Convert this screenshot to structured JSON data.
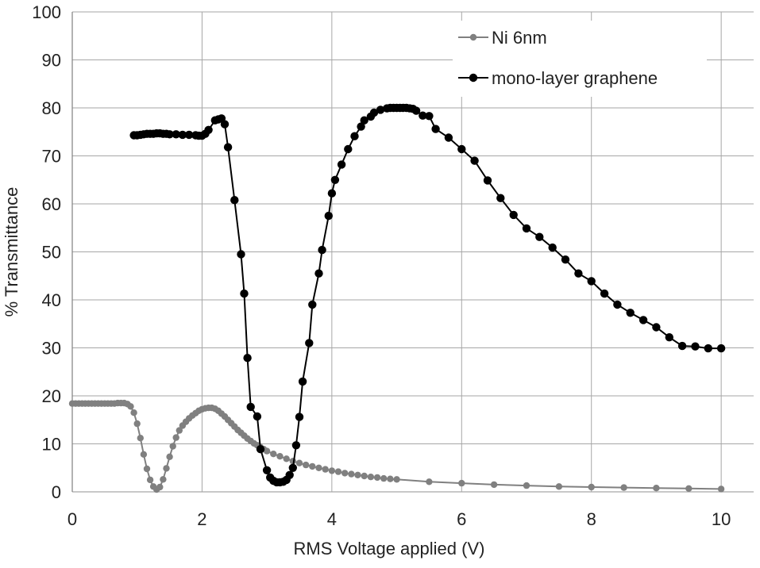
{
  "chart_data": {
    "type": "line",
    "title": "",
    "xlabel": "RMS Voltage applied (V)",
    "ylabel": "% Transmittance",
    "xlim": [
      0,
      10.5
    ],
    "ylim": [
      0,
      100
    ],
    "x_ticks": [
      0,
      2,
      4,
      6,
      8,
      10
    ],
    "y_ticks": [
      0,
      10,
      20,
      30,
      40,
      50,
      60,
      70,
      80,
      90,
      100
    ],
    "grid": true,
    "legend_position": "top-right",
    "series": [
      {
        "name": "Ni 6nm",
        "color": "#808080",
        "x": [
          0,
          0.05,
          0.1,
          0.15,
          0.2,
          0.25,
          0.3,
          0.35,
          0.4,
          0.45,
          0.5,
          0.55,
          0.6,
          0.65,
          0.7,
          0.75,
          0.8,
          0.85,
          0.9,
          0.95,
          1.0,
          1.05,
          1.1,
          1.15,
          1.2,
          1.25,
          1.3,
          1.35,
          1.4,
          1.45,
          1.5,
          1.55,
          1.6,
          1.65,
          1.7,
          1.75,
          1.8,
          1.85,
          1.9,
          1.95,
          2.0,
          2.05,
          2.1,
          2.15,
          2.2,
          2.25,
          2.3,
          2.35,
          2.4,
          2.45,
          2.5,
          2.55,
          2.6,
          2.65,
          2.7,
          2.75,
          2.8,
          2.85,
          2.9,
          2.95,
          3.0,
          3.1,
          3.2,
          3.3,
          3.4,
          3.5,
          3.6,
          3.7,
          3.8,
          3.9,
          4.0,
          4.1,
          4.2,
          4.3,
          4.4,
          4.5,
          4.6,
          4.7,
          4.8,
          4.9,
          5.0,
          5.5,
          6.0,
          6.5,
          7.0,
          7.5,
          8.0,
          8.5,
          9.0,
          9.5,
          10.0
        ],
        "y": [
          18.4,
          18.4,
          18.4,
          18.4,
          18.4,
          18.4,
          18.4,
          18.4,
          18.4,
          18.4,
          18.4,
          18.4,
          18.4,
          18.4,
          18.5,
          18.5,
          18.5,
          18.3,
          17.8,
          16.5,
          14.2,
          11.2,
          7.8,
          4.8,
          2.5,
          1.1,
          0.5,
          1.0,
          2.6,
          4.9,
          7.3,
          9.5,
          11.3,
          12.8,
          13.8,
          14.6,
          15.3,
          15.9,
          16.4,
          16.9,
          17.2,
          17.4,
          17.5,
          17.5,
          17.3,
          16.9,
          16.3,
          15.7,
          15.0,
          14.3,
          13.6,
          12.9,
          12.3,
          11.7,
          11.1,
          10.6,
          10.1,
          9.7,
          9.3,
          8.9,
          8.5,
          7.9,
          7.4,
          6.9,
          6.4,
          6.0,
          5.6,
          5.3,
          5.0,
          4.7,
          4.4,
          4.2,
          3.9,
          3.7,
          3.5,
          3.3,
          3.1,
          3.0,
          2.8,
          2.7,
          2.6,
          2.1,
          1.8,
          1.5,
          1.3,
          1.1,
          1.0,
          0.9,
          0.8,
          0.7,
          0.6
        ]
      },
      {
        "name": "mono-layer graphene",
        "color": "#000000",
        "x": [
          0.95,
          1.0,
          1.05,
          1.1,
          1.15,
          1.2,
          1.25,
          1.3,
          1.35,
          1.4,
          1.45,
          1.5,
          1.6,
          1.7,
          1.8,
          1.9,
          1.95,
          2.0,
          2.05,
          2.1,
          2.2,
          2.25,
          2.3,
          2.35,
          2.4,
          2.5,
          2.6,
          2.65,
          2.7,
          2.75,
          2.85,
          2.9,
          3.0,
          3.05,
          3.1,
          3.15,
          3.2,
          3.25,
          3.3,
          3.35,
          3.4,
          3.45,
          3.5,
          3.55,
          3.65,
          3.7,
          3.8,
          3.85,
          3.95,
          4.0,
          4.05,
          4.15,
          4.25,
          4.35,
          4.45,
          4.5,
          4.6,
          4.65,
          4.75,
          4.85,
          4.9,
          4.95,
          5.0,
          5.05,
          5.1,
          5.15,
          5.2,
          5.25,
          5.3,
          5.4,
          5.5,
          5.6,
          5.8,
          6.0,
          6.2,
          6.4,
          6.6,
          6.8,
          7.0,
          7.2,
          7.4,
          7.6,
          7.8,
          8.0,
          8.2,
          8.4,
          8.6,
          8.8,
          9.0,
          9.2,
          9.4,
          9.6,
          9.8,
          10.0
        ],
        "y": [
          74.3,
          74.3,
          74.4,
          74.5,
          74.6,
          74.6,
          74.6,
          74.7,
          74.7,
          74.6,
          74.6,
          74.5,
          74.5,
          74.4,
          74.4,
          74.3,
          74.2,
          74.2,
          74.6,
          75.4,
          77.4,
          77.6,
          77.8,
          76.6,
          71.8,
          60.8,
          49.5,
          41.3,
          27.9,
          17.7,
          15.7,
          8.9,
          4.5,
          3.0,
          2.3,
          2.0,
          2.0,
          2.1,
          2.5,
          3.5,
          5.0,
          9.7,
          15.6,
          23.0,
          31.0,
          39.0,
          45.5,
          50.4,
          57.5,
          62.2,
          65.0,
          68.2,
          71.4,
          74.1,
          76.1,
          77.4,
          78.2,
          79.0,
          79.6,
          79.9,
          80.0,
          80.0,
          80.0,
          80.0,
          80.0,
          80.0,
          79.9,
          79.8,
          79.4,
          78.4,
          78.3,
          75.6,
          73.8,
          71.4,
          69.0,
          64.9,
          61.2,
          57.7,
          54.9,
          53.1,
          50.9,
          48.4,
          45.5,
          43.9,
          41.3,
          39.0,
          37.3,
          35.8,
          34.3,
          32.2,
          30.4,
          30.3,
          29.9,
          29.9
        ]
      }
    ]
  }
}
